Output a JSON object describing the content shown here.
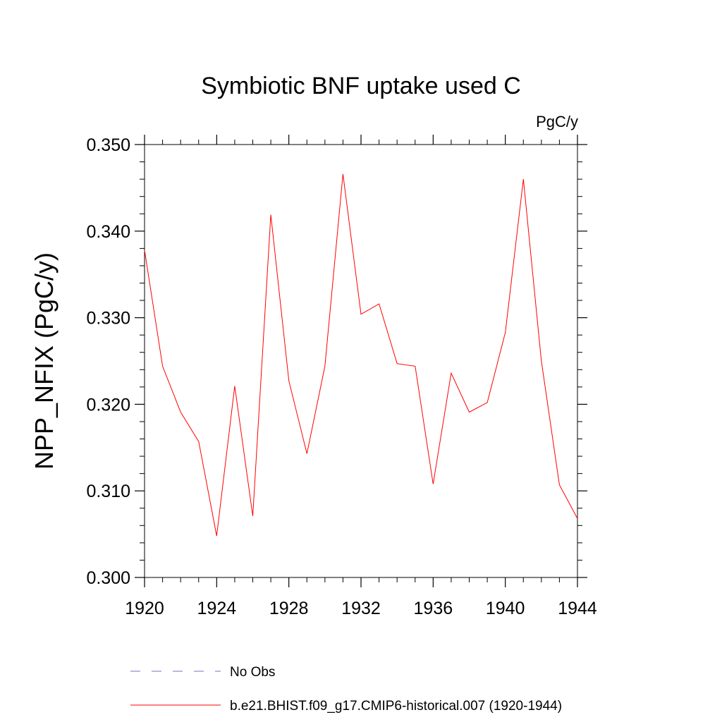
{
  "chart_data": {
    "type": "line",
    "title": "Symbiotic BNF uptake used C",
    "units_label": "PgC/y",
    "ylabel": "NPP_NFIX  (PgC/y)",
    "xlabel": "",
    "xlim": [
      1920,
      1944
    ],
    "ylim": [
      0.3,
      0.35
    ],
    "x_ticks": [
      1920,
      1924,
      1928,
      1932,
      1936,
      1940,
      1944
    ],
    "x_tick_labels": [
      "1920",
      "1924",
      "1928",
      "1932",
      "1936",
      "1940",
      "1944"
    ],
    "y_ticks": [
      0.3,
      0.31,
      0.32,
      0.33,
      0.34,
      0.35
    ],
    "y_tick_labels": [
      "0.300",
      "0.310",
      "0.320",
      "0.330",
      "0.340",
      "0.350"
    ],
    "x_minor_step": 1,
    "y_minor_step": 0.002,
    "grid": false,
    "legend_position": "bottom",
    "series": [
      {
        "name": "b.e21.BHIST.f09_g17.CMIP6-historical.007 (1920-1944)",
        "color": "#ff0000",
        "dash": "solid",
        "x": [
          1920,
          1921,
          1922,
          1923,
          1924,
          1925,
          1926,
          1927,
          1928,
          1929,
          1930,
          1931,
          1932,
          1933,
          1934,
          1935,
          1936,
          1937,
          1938,
          1939,
          1940,
          1941,
          1942,
          1943,
          1944
        ],
        "y": [
          0.3378,
          0.3244,
          0.3191,
          0.3157,
          0.3048,
          0.3221,
          0.3071,
          0.3419,
          0.3227,
          0.3143,
          0.3244,
          0.3466,
          0.3304,
          0.3316,
          0.3247,
          0.3244,
          0.3108,
          0.3236,
          0.3191,
          0.3202,
          0.3283,
          0.346,
          0.325,
          0.3107,
          0.3068
        ]
      }
    ],
    "legend": [
      {
        "label": "No Obs",
        "color": "#7b6fbf",
        "dash": "dashed"
      },
      {
        "label": "b.e21.BHIST.f09_g17.CMIP6-historical.007 (1920-1944)",
        "color": "#ff0000",
        "dash": "solid"
      }
    ]
  }
}
